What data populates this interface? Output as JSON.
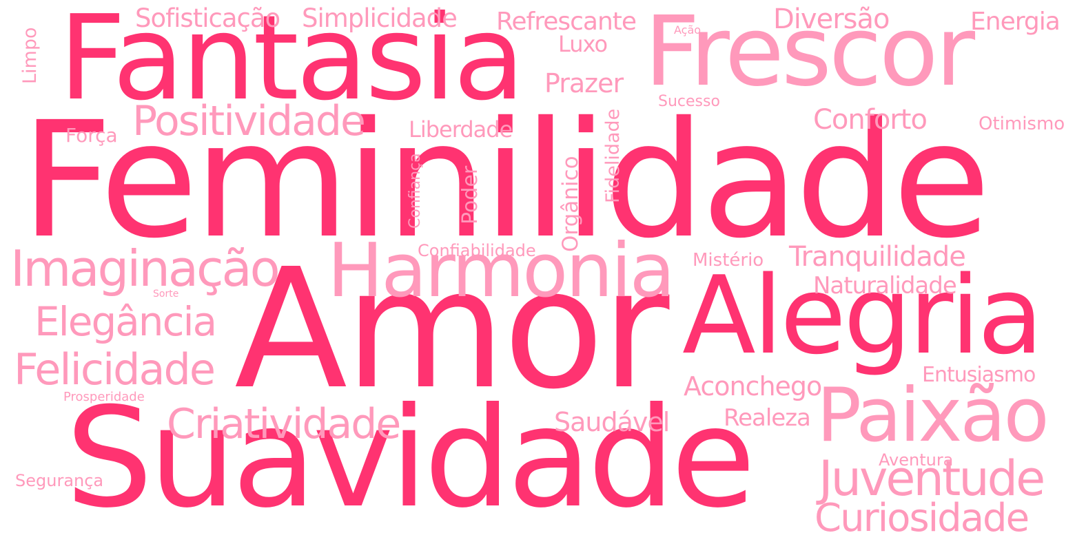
{
  "colors": {
    "dark": "#ff3371",
    "light": "#ff99bb",
    "background": "#ffffff"
  },
  "words": {
    "feminilidade": "Feminilidade",
    "amor": "Amor",
    "suavidade": "Suavidade",
    "fantasia": "Fantasia",
    "alegria": "Alegria",
    "frescor": "Frescor",
    "harmonia": "Harmonia",
    "paixao": "Paixão",
    "imaginacao": "Imaginação",
    "positividade": "Positividade",
    "juventude": "Juventude",
    "curiosidade": "Curiosidade",
    "criatividade": "Criatividade",
    "felicidade": "Felicidade",
    "elegancia": "Elegância",
    "tranquilidade": "Tranquilidade",
    "diversao": "Diversão",
    "sofisticacao": "Sofisticação",
    "simplicidade": "Simplicidade",
    "refrescante": "Refrescante",
    "energia": "Energia",
    "prazer": "Prazer",
    "conforto": "Conforto",
    "aconchego": "Aconchego",
    "naturalidade": "Naturalidade",
    "saudavel": "Saudável",
    "realeza": "Realeza",
    "entusiasmo": "Entusiasmo",
    "liberdade": "Liberdade",
    "luxo": "Luxo",
    "otimismo": "Otimismo",
    "sucesso": "Sucesso",
    "forca": "Força",
    "misterio": "Mistério",
    "confiabilidade": "Confiabilidade",
    "aventura": "Aventura",
    "seguranca": "Segurança",
    "prosperidade": "Prosperidade",
    "sorte": "Sorte",
    "acao": "Ação",
    "limpo": "Limpo",
    "confianca": "Confiança",
    "poder": "Poder",
    "organico": "Orgânico",
    "fidelidade": "Fidelidade"
  }
}
